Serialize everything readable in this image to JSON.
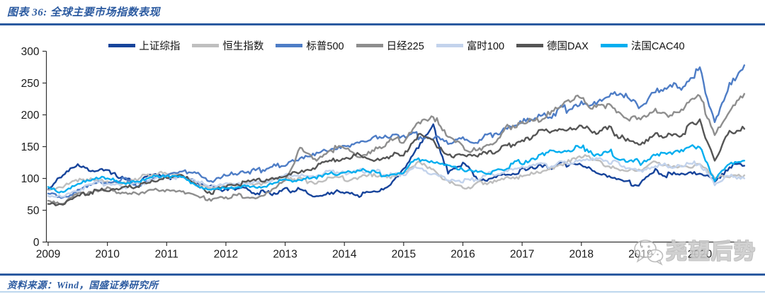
{
  "header": {
    "title": "图表 36: 全球主要市场指数表现"
  },
  "footer": {
    "source": "资料来源：Wind，国盛证券研究所"
  },
  "watermark": {
    "icon": "wechat-icon",
    "text": "尧望后势"
  },
  "colors": {
    "accent_blue": "#2b5aa0",
    "bottom_rule_light_blue": "#bdd7ee",
    "axis": "#333333",
    "watermark_gray": "#bcbcbc"
  },
  "chart_data": {
    "type": "line",
    "title": "全球主要市场指数表现",
    "xlabel": "",
    "ylabel": "",
    "x_start": 2009,
    "x_step": 0.25,
    "xlim": [
      2009,
      2020.9
    ],
    "ylim": [
      0,
      300
    ],
    "grid": false,
    "legend_position": "top",
    "x_ticks": [
      2009,
      2010,
      2011,
      2012,
      2013,
      2014,
      2015,
      2016,
      2017,
      2018,
      2019,
      2020
    ],
    "y_ticks": [
      0,
      50,
      100,
      150,
      200,
      250,
      300
    ],
    "series": [
      {
        "name": "上证综指",
        "color": "#17449b",
        "values": [
          88,
          103,
          122,
          112,
          116,
          98,
          92,
          106,
          102,
          104,
          95,
          87,
          82,
          87,
          79,
          76,
          82,
          81,
          74,
          79,
          76,
          74,
          80,
          90,
          115,
          148,
          183,
          108,
          125,
          98,
          102,
          106,
          113,
          116,
          118,
          122,
          125,
          112,
          100,
          92,
          92,
          113,
          105,
          106,
          110,
          98,
          118,
          120
        ]
      },
      {
        "name": "恒生指数",
        "color": "#bfbfbf",
        "values": [
          80,
          85,
          96,
          100,
          98,
          92,
          98,
          108,
          105,
          104,
          95,
          82,
          88,
          92,
          88,
          98,
          102,
          97,
          95,
          103,
          100,
          100,
          107,
          101,
          105,
          122,
          112,
          92,
          86,
          91,
          96,
          101,
          102,
          110,
          118,
          128,
          138,
          128,
          120,
          110,
          112,
          125,
          115,
          118,
          120,
          100,
          107,
          105
        ]
      },
      {
        "name": "标普500",
        "color": "#4e7dc6",
        "values": [
          76,
          70,
          82,
          91,
          94,
          100,
          89,
          99,
          106,
          111,
          109,
          96,
          104,
          113,
          110,
          117,
          120,
          130,
          137,
          146,
          151,
          154,
          162,
          164,
          165,
          168,
          168,
          158,
          162,
          158,
          170,
          178,
          188,
          196,
          202,
          210,
          222,
          215,
          228,
          235,
          210,
          234,
          243,
          248,
          268,
          190,
          252,
          278
        ]
      },
      {
        "name": "日经225",
        "color": "#8e8e8e",
        "values": [
          66,
          60,
          75,
          80,
          84,
          78,
          73,
          79,
          82,
          77,
          70,
          67,
          71,
          74,
          70,
          79,
          95,
          148,
          128,
          145,
          147,
          135,
          144,
          158,
          160,
          185,
          198,
          162,
          150,
          142,
          155,
          178,
          188,
          190,
          200,
          222,
          230,
          210,
          220,
          198,
          194,
          208,
          200,
          214,
          226,
          172,
          208,
          233
        ]
      },
      {
        "name": "富时100",
        "color": "#c3d3ec",
        "values": [
          72,
          70,
          82,
          90,
          92,
          87,
          91,
          99,
          101,
          102,
          94,
          89,
          94,
          92,
          94,
          97,
          104,
          107,
          104,
          109,
          111,
          112,
          111,
          107,
          109,
          117,
          107,
          99,
          97,
          99,
          107,
          114,
          117,
          119,
          121,
          124,
          127,
          134,
          127,
          114,
          111,
          121,
          117,
          120,
          124,
          92,
          102,
          100
        ]
      },
      {
        "name": "德国DAX",
        "color": "#555555",
        "values": [
          60,
          57,
          72,
          80,
          82,
          84,
          87,
          94,
          100,
          104,
          88,
          79,
          87,
          91,
          94,
          101,
          103,
          112,
          118,
          130,
          133,
          136,
          132,
          134,
          140,
          168,
          158,
          140,
          134,
          137,
          142,
          152,
          160,
          172,
          172,
          180,
          186,
          172,
          178,
          158,
          152,
          168,
          164,
          175,
          190,
          130,
          176,
          178
        ]
      },
      {
        "name": "法国CAC40",
        "color": "#00aeef",
        "values": [
          85,
          80,
          93,
          99,
          101,
          91,
          94,
          99,
          102,
          104,
          87,
          79,
          84,
          87,
          84,
          91,
          96,
          97,
          101,
          107,
          111,
          114,
          109,
          107,
          111,
          131,
          126,
          117,
          111,
          109,
          111,
          117,
          127,
          135,
          139,
          145,
          148,
          138,
          142,
          125,
          125,
          138,
          140,
          148,
          152,
          95,
          125,
          128
        ]
      }
    ]
  }
}
